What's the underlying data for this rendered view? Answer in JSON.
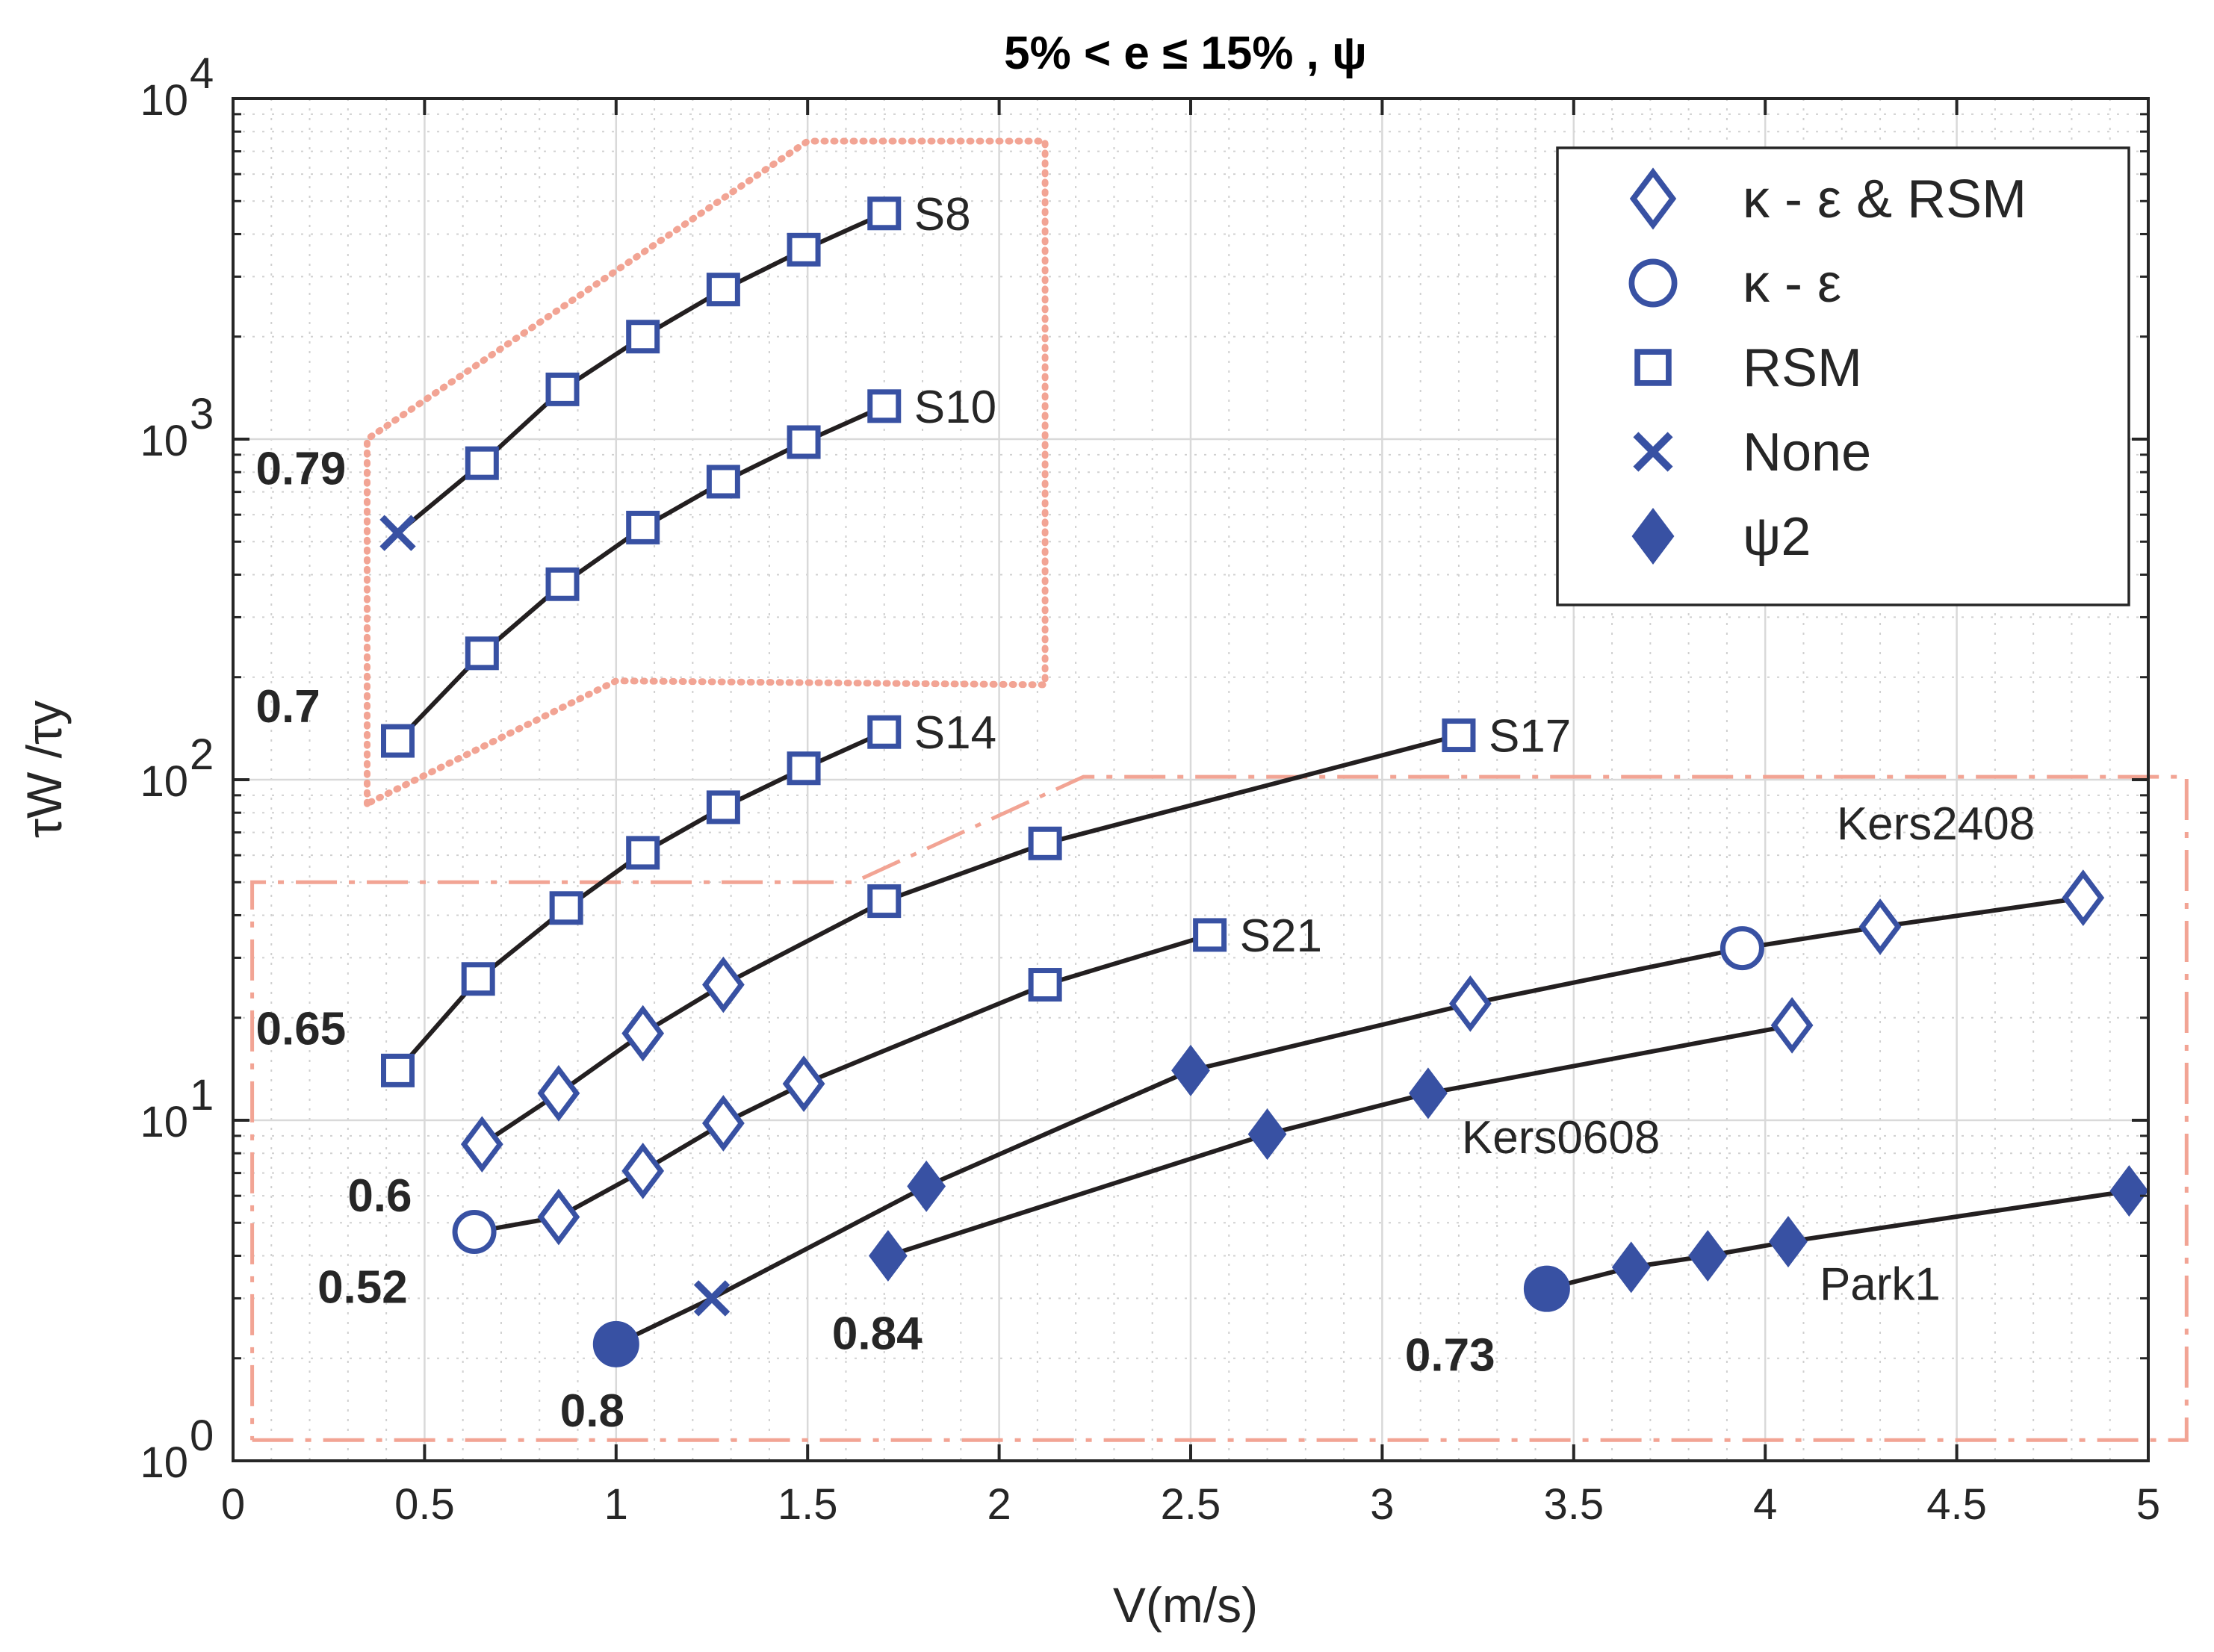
{
  "chart_data": {
    "type": "line",
    "title": "5% < e ≤ 15% , ψ",
    "xlabel": "V(m/s)",
    "ylabel": "τW /τy",
    "xlim": [
      0,
      5
    ],
    "ylim": [
      1,
      10000
    ],
    "yscale": "log",
    "xticks": [
      0,
      0.5,
      1,
      1.5,
      2,
      2.5,
      3,
      3.5,
      4,
      4.5,
      5
    ],
    "xtick_labels": [
      "0",
      "0.5",
      "1",
      "1.5",
      "2",
      "2.5",
      "3",
      "3.5",
      "4",
      "4.5",
      "5"
    ],
    "yticks": [
      {
        "value": 1,
        "base": "10",
        "exp": "0"
      },
      {
        "value": 10,
        "base": "10",
        "exp": "1"
      },
      {
        "value": 100,
        "base": "10",
        "exp": "2"
      },
      {
        "value": 1000,
        "base": "10",
        "exp": "3"
      },
      {
        "value": 10000,
        "base": "10",
        "exp": "4"
      }
    ],
    "grid": true,
    "minor_grid": true,
    "legend_position": "top-right",
    "legend": [
      {
        "marker": "diamond-open",
        "label": "κ - ε & RSM"
      },
      {
        "marker": "circle-open",
        "label": "κ - ε"
      },
      {
        "marker": "square-open",
        "label": "RSM"
      },
      {
        "marker": "x",
        "label": "None"
      },
      {
        "marker": "diamond-filled",
        "label": "ψ2"
      }
    ],
    "colors": {
      "line": "#231f20",
      "marker": "#3851a3",
      "region": "#f2a494",
      "grid": "#d9d9d9",
      "axis": "#262626"
    },
    "series": [
      {
        "name": "S8",
        "label": "S8",
        "start_label": "0.79",
        "points": [
          [
            0.43,
            530,
            "x"
          ],
          [
            0.65,
            850,
            "square-open"
          ],
          [
            0.86,
            1400,
            "square-open"
          ],
          [
            1.07,
            2000,
            "square-open"
          ],
          [
            1.28,
            2750,
            "square-open"
          ],
          [
            1.49,
            3600,
            "square-open"
          ],
          [
            1.7,
            4600,
            "square-open"
          ]
        ]
      },
      {
        "name": "S10",
        "label": "S10",
        "start_label": "0.7",
        "points": [
          [
            0.43,
            130,
            "square-open"
          ],
          [
            0.65,
            235,
            "square-open"
          ],
          [
            0.86,
            375,
            "square-open"
          ],
          [
            1.07,
            550,
            "square-open"
          ],
          [
            1.28,
            750,
            "square-open"
          ],
          [
            1.49,
            980,
            "square-open"
          ],
          [
            1.7,
            1250,
            "square-open"
          ]
        ]
      },
      {
        "name": "S14",
        "label": "S14",
        "start_label": "0.65",
        "points": [
          [
            0.43,
            14,
            "square-open"
          ],
          [
            0.64,
            26,
            "square-open"
          ],
          [
            0.87,
            42,
            "square-open"
          ],
          [
            1.07,
            61,
            "square-open"
          ],
          [
            1.28,
            83,
            "square-open"
          ],
          [
            1.49,
            108,
            "square-open"
          ],
          [
            1.7,
            138,
            "square-open"
          ]
        ]
      },
      {
        "name": "S17",
        "label": "S17",
        "start_label": "0.6",
        "points": [
          [
            0.65,
            8.5,
            "diamond-open"
          ],
          [
            0.85,
            12,
            "diamond-open"
          ],
          [
            1.07,
            18,
            "diamond-open"
          ],
          [
            1.28,
            25,
            "diamond-open"
          ],
          [
            1.7,
            44,
            "square-open"
          ],
          [
            2.12,
            65,
            "square-open"
          ],
          [
            3.2,
            135,
            "square-open"
          ]
        ]
      },
      {
        "name": "S21",
        "label": "S21",
        "start_label": "0.52",
        "points": [
          [
            0.63,
            4.7,
            "circle-open"
          ],
          [
            0.85,
            5.2,
            "diamond-open"
          ],
          [
            1.07,
            7.1,
            "diamond-open"
          ],
          [
            1.28,
            9.8,
            "diamond-open"
          ],
          [
            1.49,
            12.8,
            "diamond-open"
          ],
          [
            2.12,
            25,
            "square-open"
          ],
          [
            2.55,
            35,
            "square-open"
          ]
        ]
      },
      {
        "name": "Kers2408",
        "label": "Kers2408",
        "start_label": "0.8",
        "points": [
          [
            1.0,
            2.2,
            "circle-filled"
          ],
          [
            1.25,
            3.0,
            "x"
          ],
          [
            1.81,
            6.4,
            "diamond-filled"
          ],
          [
            2.5,
            14,
            "diamond-filled"
          ],
          [
            3.23,
            22,
            "diamond-open"
          ],
          [
            3.94,
            32,
            "circle-open"
          ],
          [
            4.3,
            37,
            "diamond-open"
          ],
          [
            4.83,
            45,
            "diamond-open"
          ]
        ]
      },
      {
        "name": "Kers0608",
        "label": "Kers0608",
        "start_label": "0.84",
        "points": [
          [
            1.71,
            4.0,
            "diamond-filled"
          ],
          [
            2.7,
            9.1,
            "diamond-filled"
          ],
          [
            3.12,
            12,
            "diamond-filled"
          ],
          [
            4.07,
            19,
            "diamond-open"
          ]
        ]
      },
      {
        "name": "Park1",
        "label": "Park1",
        "start_label": "0.73",
        "points": [
          [
            3.43,
            3.2,
            "circle-filled"
          ],
          [
            3.65,
            3.7,
            "diamond-filled"
          ],
          [
            3.85,
            4.0,
            "diamond-filled"
          ],
          [
            4.06,
            4.4,
            "diamond-filled"
          ],
          [
            4.95,
            6.2,
            "diamond-filled"
          ]
        ]
      }
    ],
    "regions": [
      {
        "name": "region-dotted",
        "outline": [
          [
            0.35,
            85
          ],
          [
            0.35,
            1000
          ],
          [
            1.5,
            7500
          ],
          [
            2.12,
            7500
          ],
          [
            2.12,
            190
          ],
          [
            1.0,
            195
          ],
          [
            0.35,
            85
          ]
        ]
      },
      {
        "name": "region-dashdot",
        "outline": [
          [
            0.05,
            1.15
          ],
          [
            5.1,
            1.15
          ],
          [
            5.1,
            102
          ],
          [
            2.22,
            102
          ],
          [
            1.62,
            50
          ],
          [
            0.05,
            50
          ],
          [
            0.05,
            1.15
          ]
        ]
      }
    ]
  }
}
